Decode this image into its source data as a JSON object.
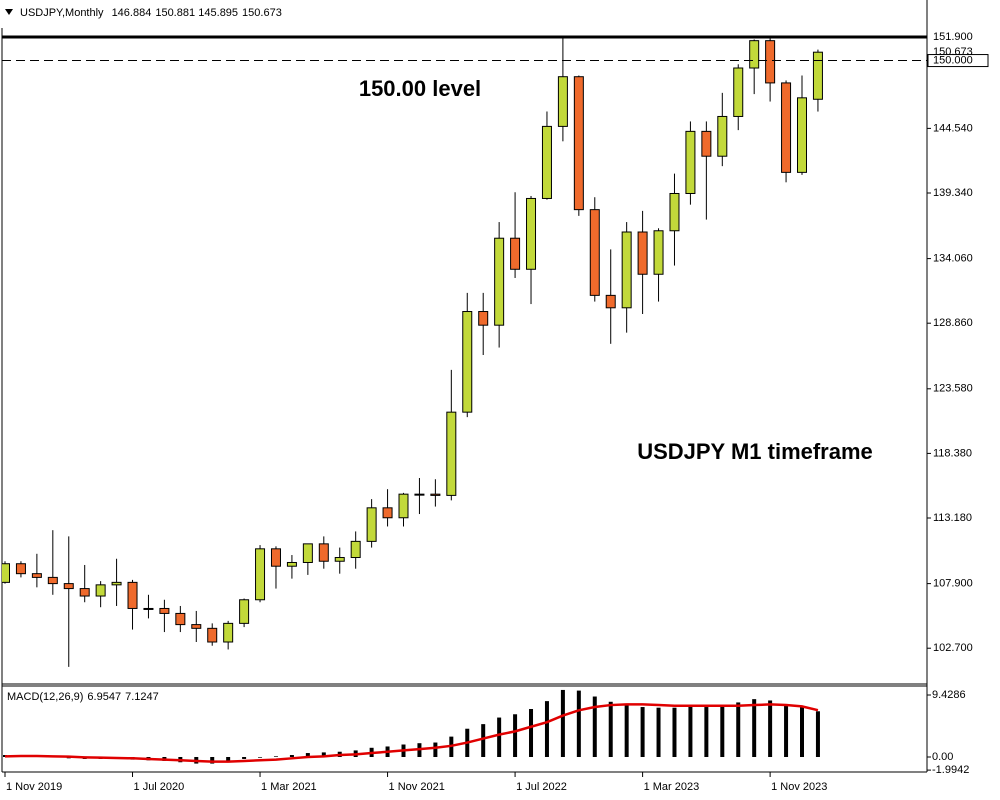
{
  "chart_data": {
    "type": "candlestick",
    "title": "USDJPY,Monthly",
    "categories": [
      "1 Nov 2019",
      null,
      null,
      null,
      null,
      null,
      null,
      null,
      "1 Jul 2020",
      null,
      null,
      null,
      null,
      null,
      null,
      null,
      "1 Mar 2021",
      null,
      null,
      null,
      null,
      null,
      null,
      null,
      "1 Nov 2021",
      null,
      null,
      null,
      null,
      null,
      null,
      null,
      "1 Jul 2022",
      null,
      null,
      null,
      null,
      null,
      null,
      null,
      "1 Mar 2023",
      null,
      null,
      null,
      null,
      null,
      null,
      null,
      "1 Nov 2023",
      null,
      null,
      null
    ],
    "open": [
      108.0,
      109.5,
      108.7,
      108.4,
      107.9,
      107.5,
      106.9,
      107.8,
      108.0,
      105.9,
      105.9,
      105.5,
      104.6,
      104.3,
      103.2,
      104.7,
      106.6,
      110.7,
      109.3,
      109.6,
      111.1,
      109.7,
      110.0,
      111.3,
      114.0,
      113.2,
      115.1,
      115.1,
      115.0,
      121.7,
      129.8,
      128.7,
      135.7,
      133.2,
      138.9,
      144.7,
      148.7,
      138.0,
      131.1,
      130.1,
      136.2,
      132.8,
      136.3,
      139.3,
      144.3,
      142.3,
      145.5,
      149.4,
      151.6,
      148.2,
      141.0,
      146.884
    ],
    "high": [
      109.7,
      109.7,
      110.3,
      112.2,
      111.7,
      109.4,
      108.1,
      109.9,
      108.2,
      107.0,
      106.6,
      106.1,
      105.7,
      104.7,
      104.9,
      106.7,
      111.0,
      110.9,
      110.2,
      111.1,
      111.7,
      110.8,
      112.1,
      114.7,
      115.5,
      115.2,
      116.4,
      116.3,
      125.1,
      131.3,
      131.3,
      137.0,
      139.4,
      139.1,
      145.9,
      151.9,
      148.8,
      139.0,
      134.8,
      137.0,
      137.9,
      136.5,
      140.9,
      145.1,
      145.1,
      147.4,
      149.7,
      151.7,
      151.9,
      148.4,
      148.8,
      150.881
    ],
    "low": [
      107.9,
      108.4,
      107.6,
      107.0,
      101.2,
      106.4,
      106.0,
      106.1,
      104.2,
      105.1,
      104.0,
      104.0,
      103.2,
      102.9,
      102.6,
      104.4,
      106.4,
      107.5,
      108.3,
      108.6,
      109.1,
      108.7,
      109.1,
      110.8,
      112.5,
      112.5,
      113.5,
      114.1,
      114.6,
      121.3,
      126.3,
      126.9,
      132.5,
      130.4,
      138.8,
      143.5,
      137.5,
      130.6,
      127.2,
      128.1,
      129.6,
      130.6,
      133.5,
      138.4,
      137.2,
      141.5,
      144.4,
      147.3,
      146.7,
      140.2,
      140.8,
      145.895
    ],
    "close": [
      109.5,
      108.7,
      108.4,
      107.9,
      107.5,
      106.9,
      107.8,
      108.0,
      105.9,
      105.9,
      105.5,
      104.6,
      104.3,
      103.2,
      104.7,
      106.6,
      110.7,
      109.3,
      109.6,
      111.1,
      109.7,
      110.0,
      111.3,
      114.0,
      113.2,
      115.1,
      115.1,
      115.0,
      121.7,
      129.8,
      128.7,
      135.7,
      133.2,
      138.9,
      144.7,
      148.7,
      138.0,
      131.1,
      130.1,
      136.2,
      132.8,
      136.3,
      139.3,
      144.3,
      142.3,
      145.5,
      149.4,
      151.6,
      148.2,
      141.0,
      147.0,
      150.673
    ],
    "up_color": "#c2d93a",
    "down_color": "#ef6a2c",
    "ylim": [
      99.9,
      152.62
    ],
    "yticks": [
      {
        "value": 102.7,
        "label": "102.700"
      },
      {
        "value": 107.9,
        "label": "107.900"
      },
      {
        "value": 113.18,
        "label": "113.180"
      },
      {
        "value": 118.38,
        "label": "118.380"
      },
      {
        "value": 123.58,
        "label": "123.580"
      },
      {
        "value": 128.86,
        "label": "128.860"
      },
      {
        "value": 134.06,
        "label": "134.060"
      },
      {
        "value": 139.34,
        "label": "139.340"
      },
      {
        "value": 144.54,
        "label": "144.540"
      }
    ],
    "hlines": [
      {
        "value": 151.9,
        "label": "151.900",
        "style": "solid"
      },
      {
        "value": 150,
        "label": "150.000",
        "style": "dashed"
      }
    ],
    "annotations": [
      "150.00 level",
      "USDJPY M1 timeframe"
    ],
    "macd": {
      "label": "MACD(12,26,9)",
      "histogram": {
        "color": "#000000",
        "values": [
          0.3,
          0.3,
          0.2,
          0.0,
          -0.2,
          -0.3,
          -0.3,
          -0.2,
          -0.4,
          -0.5,
          -0.6,
          -0.8,
          -1.0,
          -1.0,
          -0.8,
          -0.3,
          -0.1,
          0.1,
          0.3,
          0.6,
          0.7,
          0.8,
          1.0,
          1.4,
          1.6,
          1.9,
          2.1,
          2.2,
          3.1,
          4.3,
          5.0,
          6.0,
          6.5,
          7.3,
          8.5,
          10.2,
          10.1,
          9.2,
          8.4,
          8.0,
          7.6,
          7.5,
          7.5,
          7.9,
          7.6,
          7.8,
          8.3,
          8.8,
          8.6,
          7.8,
          7.6,
          6.9547
        ]
      },
      "signal": {
        "color": "#e00000",
        "values": [
          0.1,
          0.15,
          0.15,
          0.1,
          0.05,
          -0.05,
          -0.1,
          -0.15,
          -0.2,
          -0.3,
          -0.4,
          -0.5,
          -0.6,
          -0.7,
          -0.7,
          -0.6,
          -0.5,
          -0.4,
          -0.2,
          0.0,
          0.1,
          0.3,
          0.4,
          0.6,
          0.8,
          1.0,
          1.2,
          1.4,
          1.7,
          2.2,
          2.8,
          3.4,
          3.9,
          4.6,
          5.3,
          6.3,
          7.1,
          7.6,
          7.9,
          8.0,
          8.0,
          7.9,
          7.8,
          7.8,
          7.8,
          7.8,
          7.8,
          7.9,
          8.0,
          7.9,
          7.7,
          7.1247
        ]
      },
      "ylim": [
        -2.13,
        10.8
      ],
      "yticks": [
        9.4286,
        {
          "value": 0,
          "label": "0.00"
        },
        -1.9942
      ]
    }
  }
}
